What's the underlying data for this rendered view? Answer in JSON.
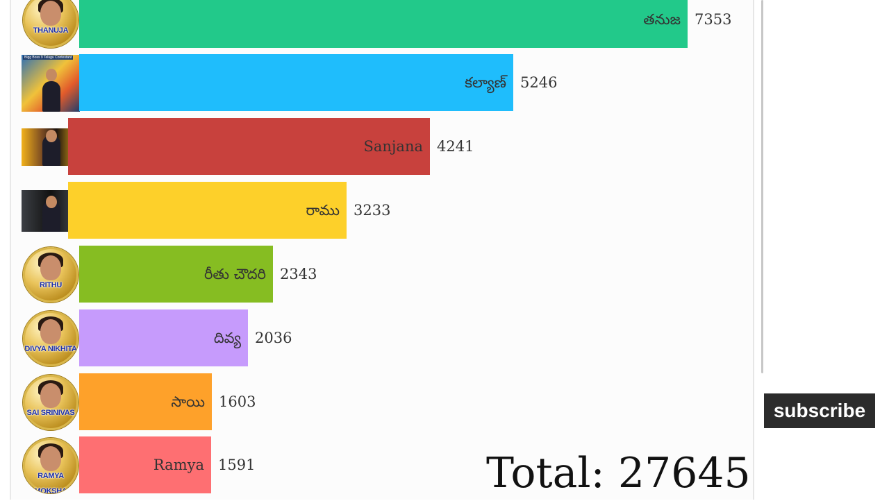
{
  "chart_data": {
    "type": "bar",
    "orientation": "horizontal",
    "categories": [
      "తనుజ",
      "కల్యాణ్",
      "Sanjana",
      "రాము",
      "రీతు చౌదరి",
      "దివ్య",
      "సాయి",
      "Ramya"
    ],
    "values": [
      7353,
      5246,
      4241,
      3233,
      2343,
      2036,
      1603,
      1591
    ],
    "colors": [
      "#22c98a",
      "#1fbdfc",
      "#c8413d",
      "#fdd02a",
      "#86bd22",
      "#c69bfc",
      "#fea12a",
      "#fe6f72"
    ],
    "avatars": [
      {
        "kind": "circle",
        "caption": "THANUJA",
        "icon": "contestant-thanuja-avatar"
      },
      {
        "kind": "photo",
        "caption": "Bigg Boss 9 Telugu Contestant",
        "icon": "contestant-kalyan-photo"
      },
      {
        "kind": "photo",
        "caption": "",
        "icon": "contestant-sanjana-photo"
      },
      {
        "kind": "photo",
        "caption": "",
        "icon": "contestant-ramu-photo"
      },
      {
        "kind": "circle",
        "caption": "RITHU",
        "icon": "contestant-rithu-avatar"
      },
      {
        "kind": "circle",
        "caption": "DIVYA NIKHITA",
        "icon": "contestant-divya-avatar"
      },
      {
        "kind": "circle",
        "caption": "SAI SRINIVAS",
        "icon": "contestant-sai-avatar"
      },
      {
        "kind": "circle",
        "caption": "RAMYA MOKSHA",
        "icon": "contestant-ramya-avatar"
      }
    ],
    "total_text": "Total: 27645"
  },
  "overlay": {
    "subscribe_label": "subscribe"
  }
}
